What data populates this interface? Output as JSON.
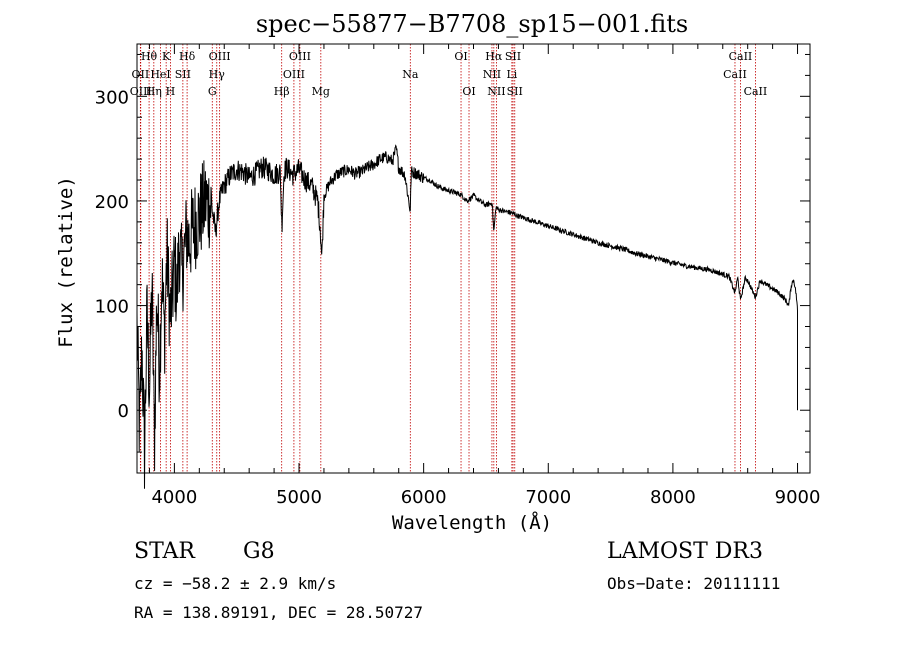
{
  "chart_data": {
    "type": "line",
    "title": "spec−55877−B7708_sp15−001.fits",
    "xlabel": "Wavelength (Å)",
    "ylabel": "Flux (relative)",
    "xlim": [
      3700,
      9100
    ],
    "ylim": [
      -60,
      350
    ],
    "x_ticks": [
      4000,
      5000,
      6000,
      7000,
      8000,
      9000
    ],
    "y_ticks": [
      0,
      100,
      200,
      300
    ],
    "grid": false,
    "series": [
      {
        "name": "spectrum",
        "anchors_x": [
          3700,
          3720,
          3740,
          3760,
          3780,
          3800,
          3820,
          3840,
          3860,
          3880,
          3900,
          3920,
          3940,
          3960,
          3970,
          3990,
          4000,
          4020,
          4040,
          4060,
          4080,
          4100,
          4120,
          4150,
          4200,
          4250,
          4300,
          4330,
          4360,
          4400,
          4450,
          4500,
          4550,
          4600,
          4650,
          4700,
          4750,
          4800,
          4850,
          4862,
          4880,
          4900,
          4950,
          5000,
          5050,
          5100,
          5150,
          5170,
          5183,
          5200,
          5250,
          5300,
          5350,
          5400,
          5450,
          5500,
          5550,
          5600,
          5650,
          5700,
          5750,
          5780,
          5800,
          5850,
          5893,
          5900,
          5950,
          6000,
          6050,
          6100,
          6150,
          6200,
          6250,
          6300,
          6350,
          6400,
          6450,
          6500,
          6550,
          6563,
          6580,
          6600,
          6650,
          6700,
          6750,
          6800,
          6900,
          7000,
          7100,
          7200,
          7300,
          7400,
          7500,
          7600,
          7700,
          7800,
          7900,
          8000,
          8100,
          8200,
          8300,
          8400,
          8450,
          8498,
          8520,
          8542,
          8580,
          8600,
          8662,
          8700,
          8750,
          8800,
          8850,
          8900,
          8930,
          8950,
          8970,
          8990,
          9000
        ],
        "anchors_y": [
          80,
          -20,
          60,
          -40,
          90,
          20,
          120,
          -30,
          110,
          40,
          130,
          70,
          150,
          100,
          90,
          120,
          140,
          110,
          160,
          130,
          150,
          170,
          160,
          175,
          185,
          200,
          195,
          170,
          200,
          215,
          225,
          230,
          228,
          222,
          226,
          232,
          230,
          225,
          228,
          175,
          228,
          232,
          225,
          230,
          220,
          215,
          200,
          175,
          145,
          205,
          218,
          225,
          228,
          230,
          226,
          228,
          232,
          235,
          240,
          242,
          238,
          250,
          232,
          225,
          190,
          228,
          226,
          222,
          220,
          215,
          212,
          210,
          208,
          206,
          200,
          205,
          200,
          196,
          198,
          170,
          194,
          192,
          190,
          189,
          186,
          184,
          180,
          176,
          172,
          168,
          164,
          160,
          157,
          154,
          150,
          147,
          144,
          141,
          138,
          136,
          134,
          130,
          128,
          112,
          127,
          105,
          126,
          124,
          108,
          124,
          120,
          116,
          112,
          106,
          100,
          120,
          125,
          110,
          95
        ]
      }
    ],
    "line_markers": [
      {
        "label": "Hθ",
        "x": 3797,
        "row": 1
      },
      {
        "label": "OII",
        "x": 3727,
        "row": 2
      },
      {
        "label": "OIII",
        "x": 3730,
        "row": 3
      },
      {
        "label": "K",
        "x": 3934,
        "row": 1
      },
      {
        "label": "HeI",
        "x": 3889,
        "row": 2
      },
      {
        "label": "Hη",
        "x": 3835,
        "row": 3
      },
      {
        "label": "Hδ",
        "x": 4102,
        "row": 1
      },
      {
        "label": "SII",
        "x": 4068,
        "row": 2
      },
      {
        "label": "H",
        "x": 3968,
        "row": 3
      },
      {
        "label": "OIII",
        "x": 4363,
        "row": 1
      },
      {
        "label": "Hγ",
        "x": 4340,
        "row": 2
      },
      {
        "label": "G",
        "x": 4304,
        "row": 3
      },
      {
        "label": "OIII",
        "x": 5007,
        "row": 1
      },
      {
        "label": "OIII",
        "x": 4959,
        "row": 2
      },
      {
        "label": "Hβ",
        "x": 4861,
        "row": 3
      },
      {
        "label": "Mg",
        "x": 5175,
        "row": 3
      },
      {
        "label": "Na",
        "x": 5893,
        "row": 2
      },
      {
        "label": "OI",
        "x": 6300,
        "row": 1
      },
      {
        "label": "OI",
        "x": 6364,
        "row": 3
      },
      {
        "label": "Hα",
        "x": 6563,
        "row": 1
      },
      {
        "label": "NII",
        "x": 6548,
        "row": 2
      },
      {
        "label": "NII",
        "x": 6584,
        "row": 3
      },
      {
        "label": "SII",
        "x": 6717,
        "row": 1
      },
      {
        "label": "Li",
        "x": 6708,
        "row": 2
      },
      {
        "label": "SII",
        "x": 6731,
        "row": 3
      },
      {
        "label": "CaII",
        "x": 8542,
        "row": 1
      },
      {
        "label": "CaII",
        "x": 8498,
        "row": 2
      },
      {
        "label": "CaII",
        "x": 8662,
        "row": 3
      }
    ]
  },
  "info": {
    "object_class": "STAR",
    "subclass": "G8",
    "survey": "LAMOST DR3",
    "cz": "cz = −58.2 ± 2.9 km/s",
    "obs_date": "Obs−Date: 20111111",
    "coords": "RA = 138.89191, DEC =  28.50727"
  },
  "colors": {
    "spectrum": "#000000",
    "markers": "#c00000",
    "axes": "#000000",
    "background": "#ffffff"
  }
}
